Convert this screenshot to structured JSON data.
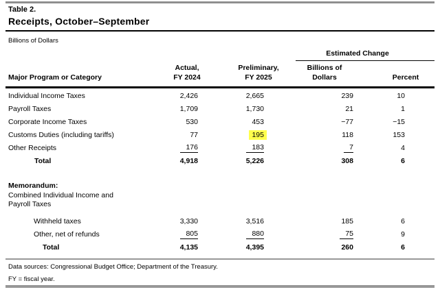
{
  "table": {
    "number_label": "Table 2.",
    "title": "Receipts, October–September",
    "units": "Billions of Dollars",
    "columns": {
      "major": "Major Program or Category",
      "group": "Estimated Change",
      "actual_line1": "Actual,",
      "actual_line2": "FY 2024",
      "prelim_line1": "Preliminary,",
      "prelim_line2": "FY 2025",
      "change_b_line1": "Billions of",
      "change_b_line2": "Dollars",
      "percent": "Percent"
    },
    "rows": [
      {
        "label": "Individual Income Taxes",
        "actual": "2,426",
        "prelim": "2,665",
        "change_b": "239",
        "change_pct": "10"
      },
      {
        "label": "Payroll Taxes",
        "actual": "1,709",
        "prelim": "1,730",
        "change_b": "21",
        "change_pct": "1"
      },
      {
        "label": "Corporate Income Taxes",
        "actual": "530",
        "prelim": "453",
        "change_b": "−77",
        "change_pct": "−15"
      },
      {
        "label": "Customs Duties (including tariffs)",
        "actual": "77",
        "prelim": "195",
        "change_b": "118",
        "change_pct": "153"
      },
      {
        "label": "Other Receipts",
        "actual": "176",
        "prelim": "183",
        "change_b": "7",
        "change_pct": "4"
      },
      {
        "label": "Total",
        "actual": "4,918",
        "prelim": "5,226",
        "change_b": "308",
        "change_pct": "6"
      }
    ],
    "highlight_color": "#FFFF4D",
    "highlighted_value": "195"
  },
  "memo": {
    "heading": "Memorandum:",
    "subheading_line1": "Combined Individual Income and",
    "subheading_line2": "Payroll Taxes",
    "rows": [
      {
        "label": "Withheld taxes",
        "actual": "3,330",
        "prelim": "3,516",
        "change_b": "185",
        "change_pct": "6"
      },
      {
        "label": "Other, net of refunds",
        "actual": "805",
        "prelim": "880",
        "change_b": "75",
        "change_pct": "9"
      },
      {
        "label": "Total",
        "actual": "4,135",
        "prelim": "4,395",
        "change_b": "260",
        "change_pct": "6"
      }
    ]
  },
  "footer": {
    "sources": "Data sources: Congressional Budget Office; Department of the Treasury.",
    "note": "FY = fiscal year."
  }
}
